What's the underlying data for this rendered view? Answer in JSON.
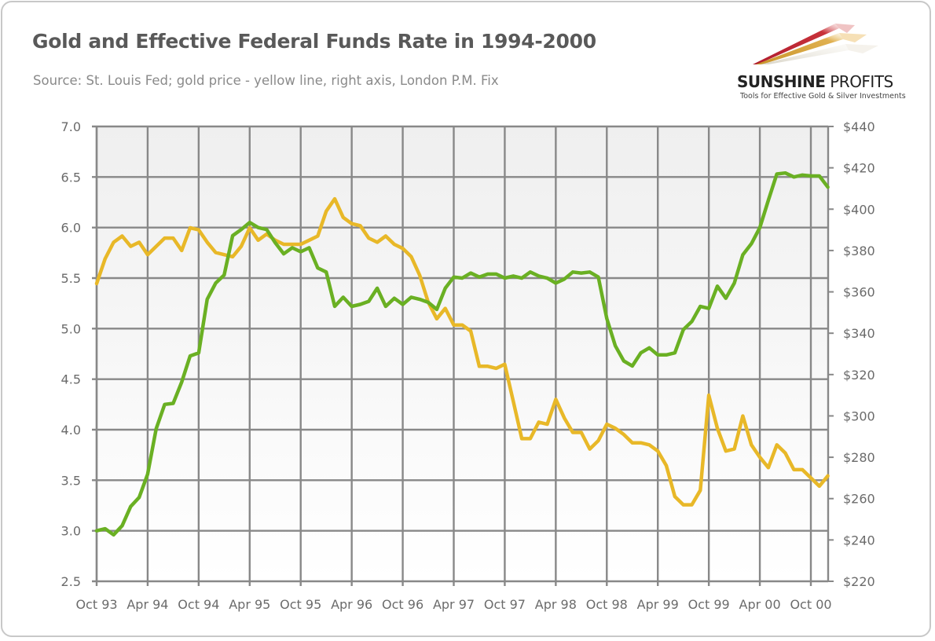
{
  "header": {
    "title": "Gold and Effective Federal Funds Rate in 1994-2000",
    "subtitle": "Source: St. Louis Fed; gold price - yellow line, right axis, London P.M. Fix"
  },
  "logo": {
    "name_bold": "SUNSHINE",
    "name_light": " PROFITS",
    "tagline": "Tools for Effective Gold & Silver Investments"
  },
  "colors": {
    "fed_funds": "#6ab023",
    "gold": "#e8b828",
    "grid": "#888888",
    "plot_bg_top": "#efefef",
    "plot_bg_bottom": "#ffffff"
  },
  "chart_data": {
    "type": "line",
    "title": "Gold and Effective Federal Funds Rate in 1994-2000",
    "subtitle": "Source: St. Louis Fed; gold price - yellow line, right axis, London P.M. Fix",
    "xlabel": "",
    "ylabel": "",
    "y2label": "",
    "grid": true,
    "legend": "none",
    "x_start": "Oct 93",
    "x_step": "1 month",
    "x_tick_labels": [
      "Oct 93",
      "Apr 94",
      "Oct 94",
      "Apr 95",
      "Oct 95",
      "Apr 96",
      "Oct 96",
      "Apr 97",
      "Oct 97",
      "Apr 98",
      "Oct 98",
      "Apr 99",
      "Oct 99",
      "Apr 00",
      "Oct 00"
    ],
    "x_tick_every_months": 6,
    "ylim": [
      2.5,
      7.0
    ],
    "y_ticks": [
      "2.5",
      "3.0",
      "3.5",
      "4.0",
      "4.5",
      "5.0",
      "5.5",
      "6.0",
      "6.5",
      "7.0"
    ],
    "y2lim": [
      220,
      440
    ],
    "y2_ticks": [
      "$220",
      "$240",
      "$260",
      "$280",
      "$300",
      "$320",
      "$340",
      "$360",
      "$380",
      "$400",
      "$420",
      "$440"
    ],
    "series": [
      {
        "name": "Effective Federal Funds Rate",
        "axis": "left",
        "color": "#6ab023",
        "values": [
          3.0,
          3.02,
          2.96,
          3.05,
          3.24,
          3.33,
          3.56,
          4.01,
          4.25,
          4.26,
          4.47,
          4.73,
          4.76,
          5.29,
          5.45,
          5.53,
          5.92,
          5.98,
          6.05,
          6.0,
          5.98,
          5.85,
          5.74,
          5.8,
          5.76,
          5.8,
          5.6,
          5.56,
          5.22,
          5.31,
          5.22,
          5.24,
          5.27,
          5.4,
          5.22,
          5.3,
          5.24,
          5.31,
          5.29,
          5.26,
          5.19,
          5.4,
          5.51,
          5.5,
          5.55,
          5.51,
          5.54,
          5.54,
          5.5,
          5.52,
          5.5,
          5.56,
          5.52,
          5.5,
          5.45,
          5.49,
          5.56,
          5.55,
          5.56,
          5.51,
          5.1,
          4.83,
          4.68,
          4.63,
          4.76,
          4.81,
          4.74,
          4.74,
          4.76,
          4.99,
          5.07,
          5.22,
          5.2,
          5.42,
          5.3,
          5.45,
          5.73,
          5.84,
          6.0,
          6.27,
          6.53,
          6.54,
          6.5,
          6.52,
          6.51,
          6.51,
          6.4
        ]
      },
      {
        "name": "Gold price (London P.M. Fix)",
        "axis": "right",
        "color": "#e8b828",
        "values": [
          364,
          376,
          384,
          387,
          382,
          384,
          378,
          382,
          386,
          386,
          380,
          391,
          390,
          384,
          379,
          378,
          377,
          382,
          391,
          385,
          388,
          385,
          383,
          383,
          383,
          385,
          387,
          399,
          405,
          396,
          393,
          392,
          386,
          384,
          387,
          383,
          381,
          377,
          368,
          355,
          347,
          352,
          344,
          344,
          341,
          324,
          324,
          323,
          325,
          307,
          289,
          289,
          297,
          296,
          308,
          299,
          292,
          292,
          284,
          288,
          296,
          294,
          291,
          287,
          287,
          286,
          283,
          276,
          261,
          257,
          257,
          264,
          310,
          294,
          283,
          284,
          300,
          286,
          280,
          275,
          286,
          282,
          274,
          274,
          270,
          266,
          271
        ]
      }
    ]
  }
}
